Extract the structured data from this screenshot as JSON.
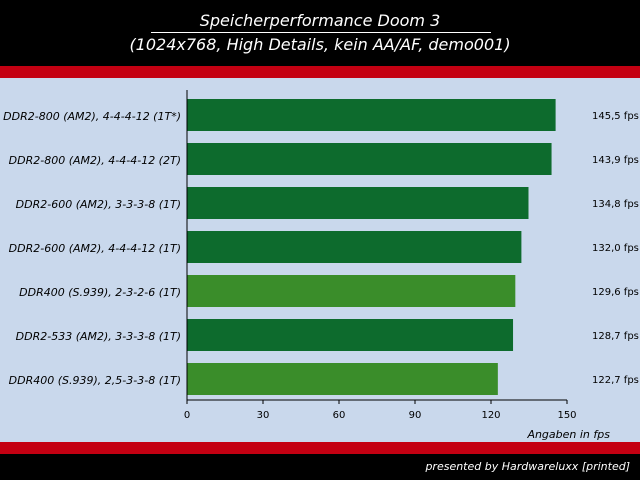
{
  "chart_data": {
    "type": "bar",
    "orientation": "horizontal",
    "title": "Speicherperformance Doom 3",
    "subtitle": "(1024x768, High Details, kein AA/AF, demo001)",
    "categories": [
      "DDR2-800 (AM2), 4-4-4-12 (1T*)",
      "DDR2-800 (AM2), 4-4-4-12 (2T)",
      "DDR2-600 (AM2), 3-3-3-8 (1T)",
      "DDR2-600 (AM2), 4-4-4-12 (1T)",
      "DDR400 (S.939), 2-3-2-6 (1T)",
      "DDR2-533 (AM2), 3-3-3-8 (1T)",
      "DDR400 (S.939), 2,5-3-3-8 (1T)"
    ],
    "values": [
      145.5,
      143.9,
      134.8,
      132.0,
      129.6,
      128.7,
      122.7
    ],
    "value_labels": [
      "145,5 fps",
      "143,9 fps",
      "134,8 fps",
      "132,0 fps",
      "129,6 fps",
      "128,7 fps",
      "122,7 fps"
    ],
    "bar_colors": [
      "#0d6b2d",
      "#0d6b2d",
      "#0d6b2d",
      "#0d6b2d",
      "#3a8d2a",
      "#0d6b2d",
      "#3a8d2a"
    ],
    "xlabel": "Angaben in fps",
    "xlim": [
      0,
      150
    ],
    "xticks": [
      0,
      30,
      60,
      90,
      120,
      150
    ],
    "grid": false,
    "legend": "none"
  },
  "footer": "presented by Hardwareluxx [printed]",
  "colors": {
    "background": "#000000",
    "stripe": "#c40012",
    "plot_area": "#c9d8ec"
  }
}
